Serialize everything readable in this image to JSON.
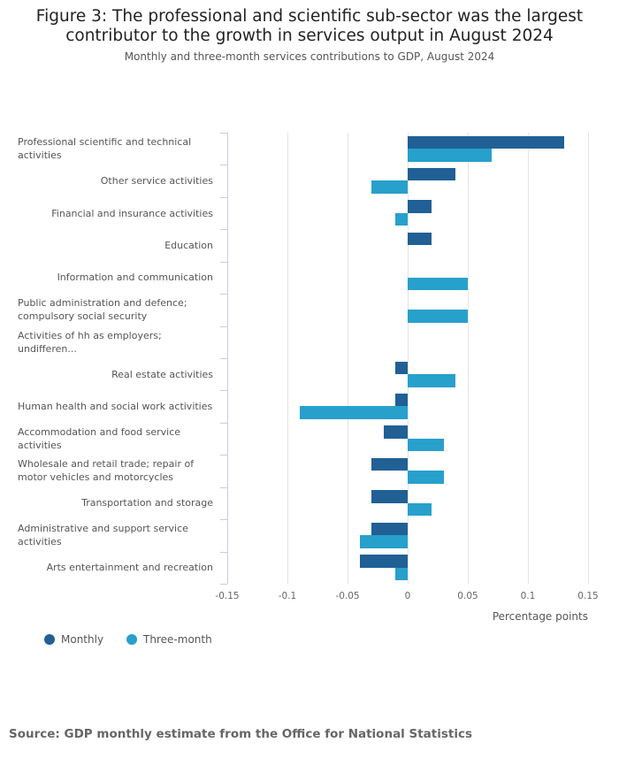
{
  "title": "Figure 3: The professional and scientific sub-sector was the largest contributor to the growth in services output in August 2024",
  "subtitle": "Monthly and three-month services contributions to GDP, August 2024",
  "source": "Source: GDP monthly estimate from the Office for National Statistics",
  "colors": {
    "monthly": "#206095",
    "three_month": "#27a0cc"
  },
  "chart_data": {
    "type": "bar",
    "orientation": "horizontal",
    "title": "Figure 3: The professional and scientific sub-sector was the largest contributor to the growth in services output in August 2024",
    "xlabel": "Percentage points",
    "ylabel": "",
    "xlim": [
      -0.15,
      0.15
    ],
    "xticks": [
      -0.15,
      -0.1,
      -0.05,
      0,
      0.05,
      0.1,
      0.15
    ],
    "xtick_labels": [
      "-0.15",
      "-0.1",
      "-0.05",
      "0",
      "0.05",
      "0.1",
      "0.15"
    ],
    "grid": true,
    "legend_position": "bottom-left",
    "categories": [
      "Professional scientific and technical activities",
      "Other service activities",
      "Financial and insurance activities",
      "Education",
      "Information and communication",
      "Public administration and defence; compulsory social security",
      "Activities of hh as employers; undifferen...",
      "Real estate activities",
      "Human health and social work activities",
      "Accommodation and food service activities",
      "Wholesale and retail trade; repair of motor vehicles and motorcycles",
      "Transportation and storage",
      "Administrative and support service activities",
      "Arts entertainment and recreation"
    ],
    "series": [
      {
        "name": "Monthly",
        "values": [
          0.13,
          0.04,
          0.02,
          0.02,
          0,
          0,
          0,
          -0.01,
          -0.01,
          -0.02,
          -0.03,
          -0.03,
          -0.03,
          -0.04
        ]
      },
      {
        "name": "Three-month",
        "values": [
          0.07,
          -0.03,
          -0.01,
          0,
          0.05,
          0.05,
          0,
          0.04,
          -0.09,
          0.03,
          0.03,
          0.02,
          -0.04,
          -0.01
        ]
      }
    ]
  }
}
